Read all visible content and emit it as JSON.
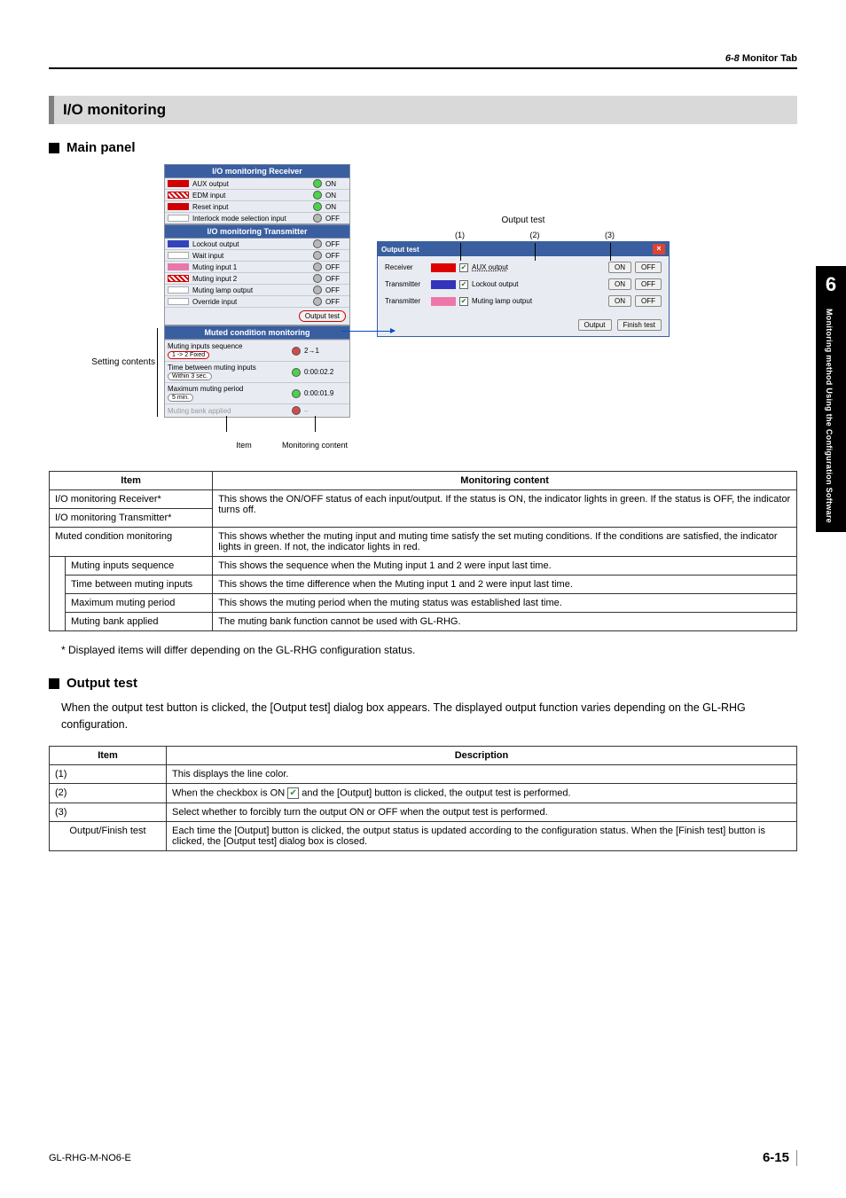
{
  "header": {
    "section_number": "6-8",
    "section_label": "Monitor Tab"
  },
  "section_title": "I/O monitoring",
  "subhead_main": "Main panel",
  "subhead_output": "Output test",
  "diagram": {
    "setting_contents_label": "Setting contents",
    "item_label": "Item",
    "monitoring_content_label": "Monitoring content",
    "output_test_label": "Output test",
    "col_nums": [
      "(1)",
      "(2)",
      "(3)"
    ],
    "receiver_hdr": "I/O monitoring Receiver",
    "transmitter_hdr": "I/O monitoring Transmitter",
    "muted_hdr": "Muted condition monitoring",
    "output_test_btn": "Output test",
    "receiver_rows": [
      {
        "swatch": "#d00000",
        "hatch": false,
        "label": "AUX output",
        "on": true,
        "state": "ON"
      },
      {
        "swatch": "#d00000",
        "hatch": true,
        "label": "EDM input",
        "on": true,
        "state": "ON"
      },
      {
        "swatch": "#d00000",
        "hatch": false,
        "label": "Reset input",
        "on": true,
        "state": "ON"
      },
      {
        "swatch": "#ffffff",
        "hatch": false,
        "label": "Interlock mode selection input",
        "on": false,
        "state": "OFF"
      }
    ],
    "transmitter_rows": [
      {
        "swatch": "#3344bb",
        "hatch": false,
        "label": "Lockout output",
        "on": false,
        "state": "OFF"
      },
      {
        "swatch": "#ffffff",
        "hatch": false,
        "label": "Wait input",
        "on": false,
        "state": "OFF"
      },
      {
        "swatch": "#e878aa",
        "hatch": false,
        "label": "Muting input 1",
        "on": false,
        "state": "OFF"
      },
      {
        "swatch": "#d00000",
        "hatch": true,
        "label": "Muting input 2",
        "on": false,
        "state": "OFF"
      },
      {
        "swatch": "#ffffff",
        "hatch": false,
        "label": "Muting lamp output",
        "on": false,
        "state": "OFF"
      },
      {
        "swatch": "#ffffff",
        "hatch": false,
        "label": "Override input",
        "on": false,
        "state": "OFF"
      }
    ],
    "muted_rows": [
      {
        "label": "Muting inputs sequence",
        "oval": "1 -> 2 Fixed",
        "ind": "red",
        "val": "2→1",
        "oval_red": true
      },
      {
        "label": "Time between muting inputs",
        "oval": "Within 3 sec.",
        "ind": "green",
        "val": "0:00:02.2",
        "oval_red": false
      },
      {
        "label": "Maximum muting period",
        "oval": "5 min.",
        "ind": "green",
        "val": "0:00:01.9",
        "oval_red": false
      },
      {
        "label": "Muting bank applied",
        "oval": "",
        "ind": "red",
        "val": "–",
        "oval_red": false,
        "greyed": true
      }
    ],
    "dlg": {
      "title": "Output test",
      "rows": [
        {
          "lab": "Receiver",
          "sw": "sw-red",
          "chk": true,
          "field": "AUX output",
          "btns": [
            "ON",
            "OFF"
          ],
          "dashed": true
        },
        {
          "lab": "Transmitter",
          "sw": "sw-blue",
          "chk": true,
          "field": "Lockout output",
          "btns": [
            "ON",
            "OFF"
          ],
          "dashed": false
        },
        {
          "lab": "Transmitter",
          "sw": "sw-pink",
          "chk": true,
          "field": "Muting lamp output",
          "btns": [
            "ON",
            "OFF"
          ],
          "dashed": false
        }
      ],
      "footer_btns": [
        "Output",
        "Finish test"
      ]
    }
  },
  "table1": {
    "headers": [
      "Item",
      "Monitoring content"
    ],
    "rows": [
      {
        "c1": "I/O monitoring Receiver*",
        "c2": "This shows the ON/OFF status of each input/output. If the status is ON, the indicator lights in green. If the status is OFF, the indicator turns off.",
        "rs": 2,
        "indent": false
      },
      {
        "c1": "I/O monitoring Transmitter*",
        "indent": false
      },
      {
        "c1": "Muted condition monitoring",
        "c2": "This shows whether the muting input and muting time satisfy the set muting conditions. If the conditions are satisfied, the indicator lights in green. If not, the indicator lights in red.",
        "indent": false
      },
      {
        "c1": "Muting inputs sequence",
        "c2": "This shows the sequence when the Muting input 1 and 2 were input last time.",
        "indent": true
      },
      {
        "c1": "Time between muting inputs",
        "c2": "This shows the time difference when the Muting input 1 and 2 were input last time.",
        "indent": true
      },
      {
        "c1": "Maximum muting period",
        "c2": "This shows the muting period when the muting status was established last time.",
        "indent": true
      },
      {
        "c1": "Muting bank applied",
        "c2": "The muting bank function cannot be used with GL-RHG.",
        "indent": true
      }
    ]
  },
  "note1": "*    Displayed items will differ depending on the GL-RHG configuration status.",
  "output_body": "When the output test button is clicked, the [Output test] dialog box appears. The displayed output function varies depending on the GL-RHG configuration.",
  "table2": {
    "headers": [
      "Item",
      "Description"
    ],
    "rows": [
      {
        "c1": "(1)",
        "c2_pre": "This displays the line color.",
        "c2_post": "",
        "chk": false
      },
      {
        "c1": "(2)",
        "c2_pre": "When the checkbox is ON ",
        "c2_post": " and the [Output] button is clicked, the output test is performed.",
        "chk": true
      },
      {
        "c1": "(3)",
        "c2_pre": "Select whether to forcibly turn the output ON or OFF when the output test is performed.",
        "c2_post": "",
        "chk": false
      },
      {
        "c1": "Output/Finish test",
        "c2_pre": "Each time the [Output] button is clicked, the output status is updated according to the configuration status. When the [Finish test] button is clicked, the [Output test] dialog box is closed.",
        "c2_post": "",
        "chk": false
      }
    ]
  },
  "side": {
    "chapter": "6",
    "text": "Monitoring method Using the Configuration Software"
  },
  "footer": {
    "doc": "GL-RHG-M-NO6-E",
    "page": "6-15"
  }
}
